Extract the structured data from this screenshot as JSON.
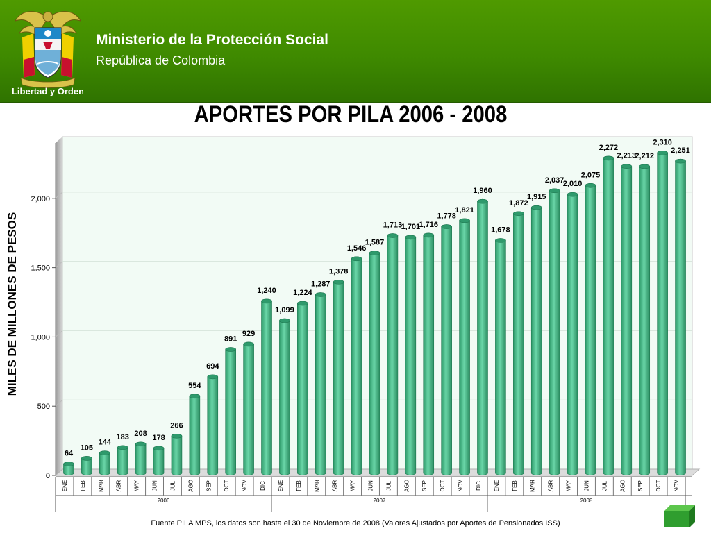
{
  "header": {
    "ministry": "Ministerio de la Protección Social",
    "republic": "República de Colombia",
    "logo_motto": "Libertad y Orden"
  },
  "colors": {
    "header_green": "#3f8a00",
    "bar_fill": "#4cc08d",
    "bar_top": "#2f9a6c",
    "plot_bg": "#f2fbf5"
  },
  "chart_data": {
    "type": "bar",
    "title": "APORTES POR PILA 2006 - 2008",
    "ylabel": "MILES  DE  MILLONES  DE  PESOS",
    "xlabel": "",
    "ylim": [
      0,
      2400
    ],
    "yticks": [
      0,
      500,
      1000,
      1500,
      2000
    ],
    "ytick_labels": [
      "0",
      "500",
      "1,000",
      "1,500",
      "2,000"
    ],
    "grid": true,
    "categories": [
      "ENE",
      "FEB",
      "MAR",
      "ABR",
      "MAY",
      "JUN",
      "JUL",
      "AGO",
      "SEP",
      "OCT",
      "NOV",
      "DIC",
      "ENE",
      "FEB",
      "MAR",
      "ABR",
      "MAY",
      "JUN",
      "JUL",
      "AGO",
      "SEP",
      "OCT",
      "NOV",
      "DIC",
      "ENE",
      "FEB",
      "MAR",
      "ABR",
      "MAY",
      "JUN",
      "JUL",
      "AGO",
      "SEP",
      "OCT",
      "NOV"
    ],
    "values": [
      64,
      105,
      144,
      183,
      208,
      178,
      266,
      554,
      694,
      891,
      929,
      1240,
      1099,
      1224,
      1287,
      1378,
      1546,
      1587,
      1713,
      1701,
      1716,
      1778,
      1821,
      1960,
      1678,
      1872,
      1915,
      2037,
      2010,
      2075,
      2272,
      2213,
      2212,
      2310,
      2251
    ],
    "value_labels": [
      "64",
      "105",
      "144",
      "183",
      "208",
      "178",
      "266",
      "554",
      "694",
      "891",
      "929",
      "1,240",
      "1,099",
      "1,224",
      "1,287",
      "1,378",
      "1,546",
      "1,587",
      "1,713",
      "1,701",
      "1,716",
      "1,778",
      "1,821",
      "1,960",
      "1,678",
      "1,872",
      "1,915",
      "2,037",
      "2,010",
      "2,075",
      "2,272",
      "2,213",
      "2,212",
      "2,310",
      "2,251"
    ],
    "groups": [
      {
        "label": "2006",
        "count": 12
      },
      {
        "label": "2007",
        "count": 12
      },
      {
        "label": "2008",
        "count": 11
      }
    ]
  },
  "footer": {
    "source_note": "Fuente PILA MPS, los datos son hasta el 30 de Noviembre de 2008 (Valores Ajustados por Aportes de Pensionados ISS)"
  }
}
